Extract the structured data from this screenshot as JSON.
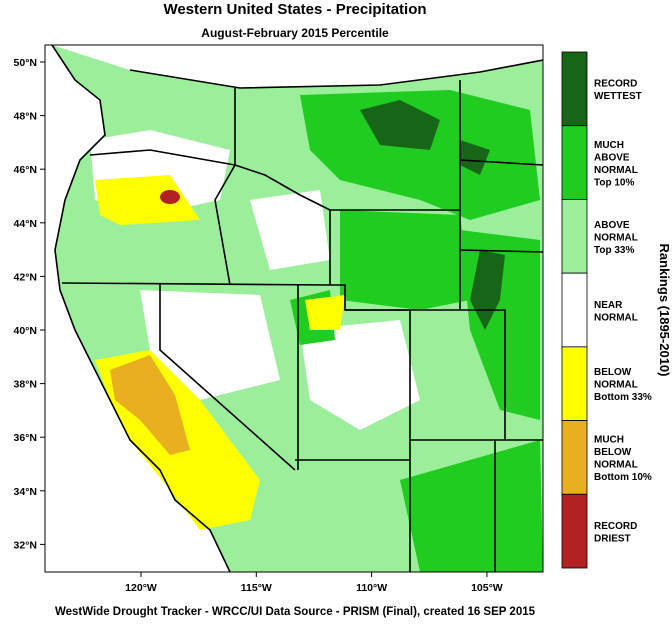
{
  "header": {
    "title": "Western United States - Precipitation",
    "subtitle": "August-February 2015 Percentile"
  },
  "map": {
    "lat_labels": [
      "50°N",
      "48°N",
      "46°N",
      "44°N",
      "42°N",
      "40°N",
      "38°N",
      "36°N",
      "34°N",
      "32°N"
    ],
    "lon_labels": [
      "120°W",
      "115°W",
      "110°W",
      "105°W"
    ]
  },
  "legend": {
    "title": "Rankings (1895-2010)",
    "items": [
      {
        "lines": [
          "RECORD",
          "WETTEST"
        ],
        "color": "#176617"
      },
      {
        "lines": [
          "MUCH",
          "ABOVE",
          "NORMAL",
          "Top 10%"
        ],
        "color": "#1fcc1f"
      },
      {
        "lines": [
          "ABOVE",
          "NORMAL",
          "Top 33%"
        ],
        "color": "#9bef9b"
      },
      {
        "lines": [
          "NEAR",
          "NORMAL"
        ],
        "color": "#ffffff"
      },
      {
        "lines": [
          "BELOW",
          "NORMAL",
          "Bottom 33%"
        ],
        "color": "#ffff00"
      },
      {
        "lines": [
          "MUCH",
          "BELOW",
          "NORMAL",
          "Bottom 10%"
        ],
        "color": "#e8b020"
      },
      {
        "lines": [
          "RECORD",
          "DRIEST"
        ],
        "color": "#b22222"
      }
    ]
  },
  "footer": "WestWide Drought Tracker - WRCC/UI  Data Source - PRISM (Final), created 16 SEP 2015"
}
